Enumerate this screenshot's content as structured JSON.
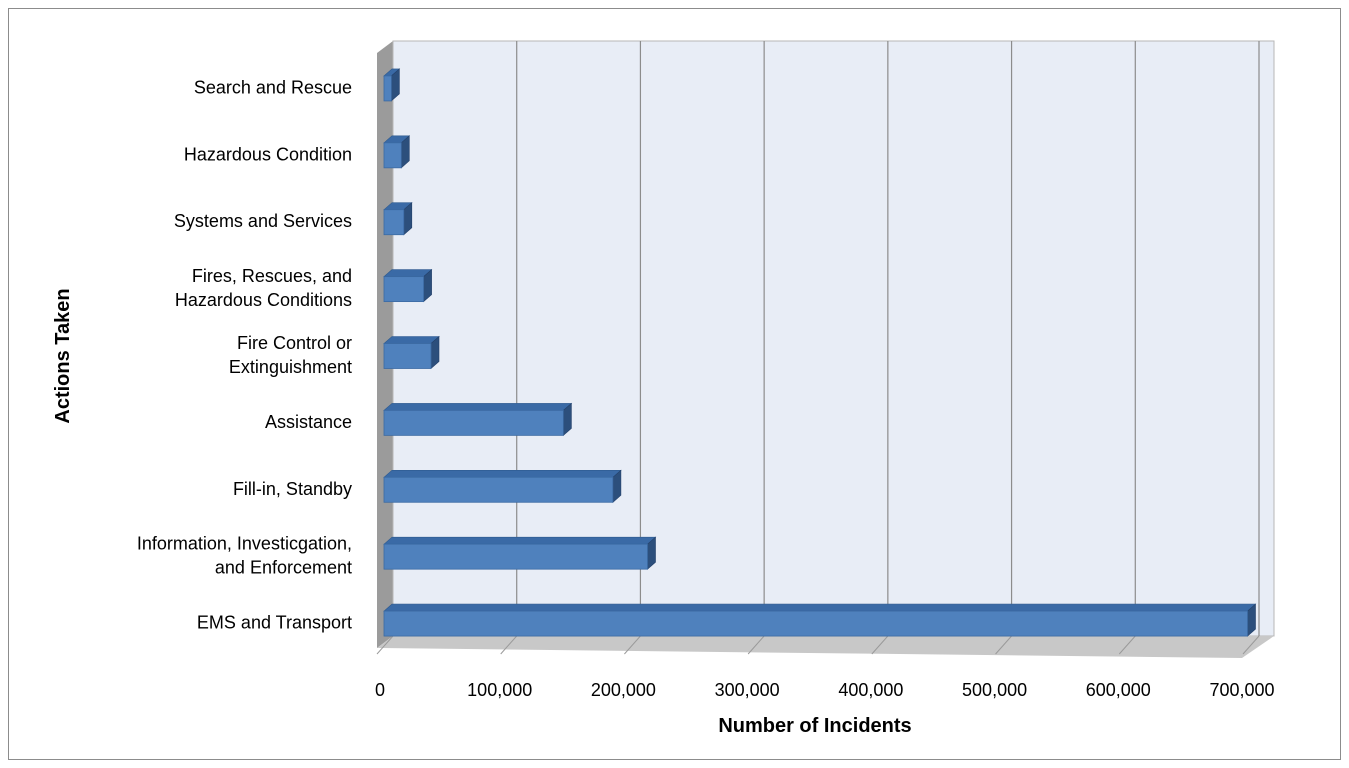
{
  "chart_data": {
    "type": "bar",
    "orientation": "horizontal",
    "style": "3d",
    "title": "",
    "xlabel": "Number of Incidents",
    "ylabel": "Actions Taken",
    "xlim": [
      0,
      700000
    ],
    "ticks": [
      0,
      100000,
      200000,
      300000,
      400000,
      500000,
      600000,
      700000
    ],
    "tick_labels": [
      "0",
      "100,000",
      "200,000",
      "300,000",
      "400,000",
      "500,000",
      "600,000",
      "700,000"
    ],
    "grid": true,
    "legend": "none",
    "categories": [
      "Search and Rescue",
      "Hazardous Condition",
      "Systems and Services",
      "Fires, Rescues, and Hazardous Conditions",
      "Fire Control or Extinguishment",
      "Assistance",
      "Fill-in, Standby",
      "Information, Investicgation, and Enforcement",
      "EMS and Transport"
    ],
    "category_lines": [
      [
        "Search and Rescue"
      ],
      [
        "Hazardous Condition"
      ],
      [
        "Systems and Services"
      ],
      [
        "Fires, Rescues, and",
        "Hazardous Conditions"
      ],
      [
        "Fire Control or",
        "Extinguishment"
      ],
      [
        "Assistance"
      ],
      [
        "Fill-in,  Standby"
      ],
      [
        "Information, Investicgation,",
        "and Enforcement"
      ],
      [
        "EMS and Transport"
      ]
    ],
    "values": [
      6000,
      14000,
      16000,
      32000,
      38000,
      145000,
      185000,
      213000,
      698000
    ],
    "colors": {
      "bar_front": "#4f81bd",
      "bar_top": "#3a6aa6",
      "bar_side": "#2c4f7c",
      "wall": "#e8edf6",
      "side_wall": "#9b9b9b",
      "floor": "#c8c8c8",
      "gridline": "#8c8c8c"
    }
  }
}
